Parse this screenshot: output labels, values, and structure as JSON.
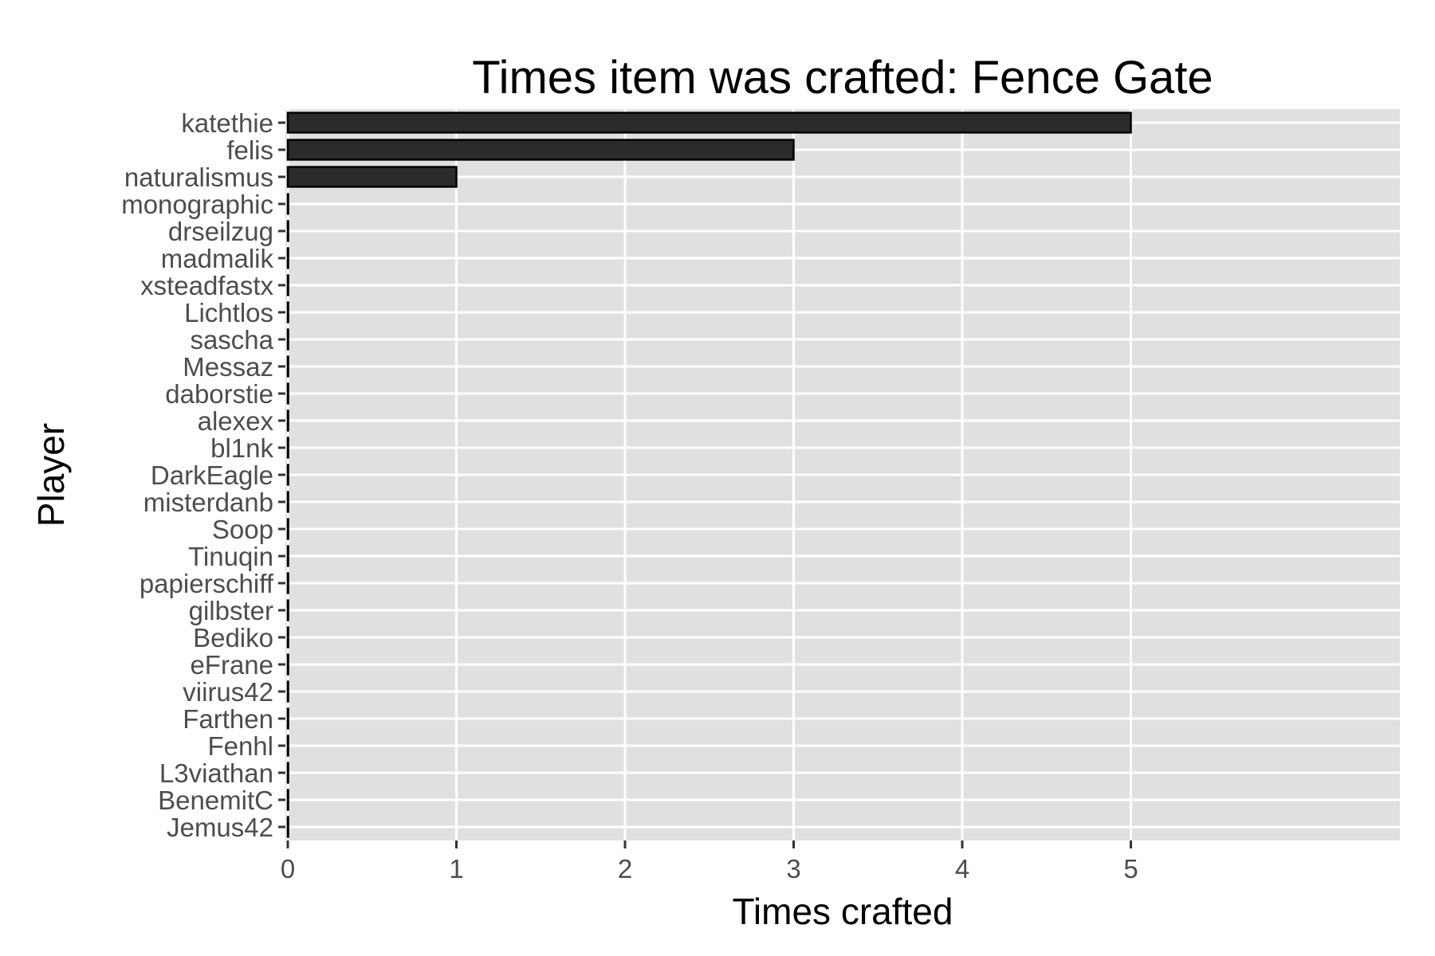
{
  "chart_data": {
    "type": "bar",
    "orientation": "horizontal",
    "title": "Times item was crafted: Fence Gate",
    "xlabel": "Times crafted",
    "ylabel": "Player",
    "xlim": [
      0,
      6.6
    ],
    "xticks": [
      0,
      1,
      2,
      3,
      4,
      5
    ],
    "categories": [
      "katethie",
      "felis",
      "naturalismus",
      "monographic",
      "drseilzug",
      "madmalik",
      "xsteadfastx",
      "Lichtlos",
      "sascha",
      "Messaz",
      "daborstie",
      "alexex",
      "bl1nk",
      "DarkEagle",
      "misterdanb",
      "Soop",
      "Tinuqin",
      "papierschiff",
      "gilbster",
      "Bediko",
      "eFrane",
      "viirus42",
      "Farthen",
      "Fenhl",
      "L3viathan",
      "BenemitC",
      "Jemus42"
    ],
    "values": [
      5,
      3,
      1,
      0,
      0,
      0,
      0,
      0,
      0,
      0,
      0,
      0,
      0,
      0,
      0,
      0,
      0,
      0,
      0,
      0,
      0,
      0,
      0,
      0,
      0,
      0,
      0
    ],
    "grid": true,
    "colors": {
      "bar_fill": "#2b2b2b",
      "bar_stroke": "#000000",
      "panel": "#e0e0e0",
      "grid": "#ffffff",
      "tick_label": "#4d4d4d"
    }
  }
}
